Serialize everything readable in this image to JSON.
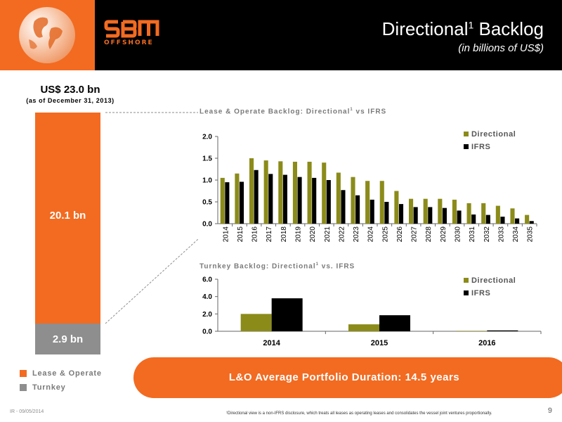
{
  "header": {
    "brand_name": "SBM",
    "brand_sub": "OFFSHORE",
    "title_main": "Directional",
    "title_sup": "1",
    "title_rest": " Backlog",
    "subtitle": "(in billions of US$)"
  },
  "summary": {
    "total": "US$ 23.0 bn",
    "as_of": "(as of December 31, 2013)",
    "lease_value": "20.1 bn",
    "turnkey_value": "2.9 bn",
    "legend": [
      {
        "label": "Lease & Operate",
        "color": "#f26b21"
      },
      {
        "label": "Turnkey",
        "color": "#8e8e8e"
      }
    ]
  },
  "chart_titles": {
    "lo_main": "Lease & Operate Backlog: Directional",
    "lo_sup": "1",
    "lo_rest": " vs IFRS",
    "tk_main": "Turnkey Backlog: Directional",
    "tk_sup": "1",
    "tk_rest": " vs. IFRS"
  },
  "chart_data": [
    {
      "type": "bar",
      "title": "Lease & Operate Backlog: Directional1 vs IFRS",
      "categories": [
        "2014",
        "2015",
        "2016",
        "2017",
        "2018",
        "2019",
        "2020",
        "2021",
        "2022",
        "2023",
        "2024",
        "2025",
        "2026",
        "2027",
        "2028",
        "2029",
        "2030",
        "2031",
        "2032",
        "2033",
        "2034",
        "2035"
      ],
      "series": [
        {
          "name": "Directional",
          "color": "#8b8b1a",
          "values": [
            1.05,
            1.15,
            1.5,
            1.45,
            1.43,
            1.42,
            1.42,
            1.4,
            1.17,
            1.07,
            0.98,
            0.98,
            0.75,
            0.57,
            0.57,
            0.57,
            0.55,
            0.47,
            0.47,
            0.41,
            0.35,
            0.2
          ]
        },
        {
          "name": "IFRS",
          "color": "#000000",
          "values": [
            0.95,
            0.96,
            1.23,
            1.14,
            1.12,
            1.07,
            1.05,
            1.0,
            0.77,
            0.65,
            0.55,
            0.5,
            0.45,
            0.38,
            0.38,
            0.36,
            0.3,
            0.21,
            0.2,
            0.16,
            0.12,
            0.06
          ]
        }
      ],
      "y_ticks": [
        "0.0",
        "0.5",
        "1.0",
        "1.5",
        "2.0"
      ],
      "ylim": [
        0,
        2.0
      ],
      "legend_position": "top-right",
      "grid": false
    },
    {
      "type": "bar",
      "title": "Turnkey Backlog: Directional1 vs. IFRS",
      "categories": [
        "2014",
        "2015",
        "2016"
      ],
      "series": [
        {
          "name": "Directional",
          "color": "#8b8b1a",
          "values": [
            2.0,
            0.8,
            0.05
          ]
        },
        {
          "name": "IFRS",
          "color": "#000000",
          "values": [
            3.8,
            1.85,
            0.1
          ]
        }
      ],
      "y_ticks": [
        "0.0",
        "2.0",
        "4.0",
        "6.0"
      ],
      "ylim": [
        0,
        6.0
      ],
      "legend_position": "top-right",
      "grid": false
    }
  ],
  "banner": "L&O Average Portfolio Duration: 14.5 years",
  "footer": {
    "left": "IR - 09/05/2014",
    "note": "¹Directional view is a non-IFRS disclosure, which treats all leases as operating leases and consolidates the vessel joint ventures proportionally.",
    "page": "9"
  }
}
